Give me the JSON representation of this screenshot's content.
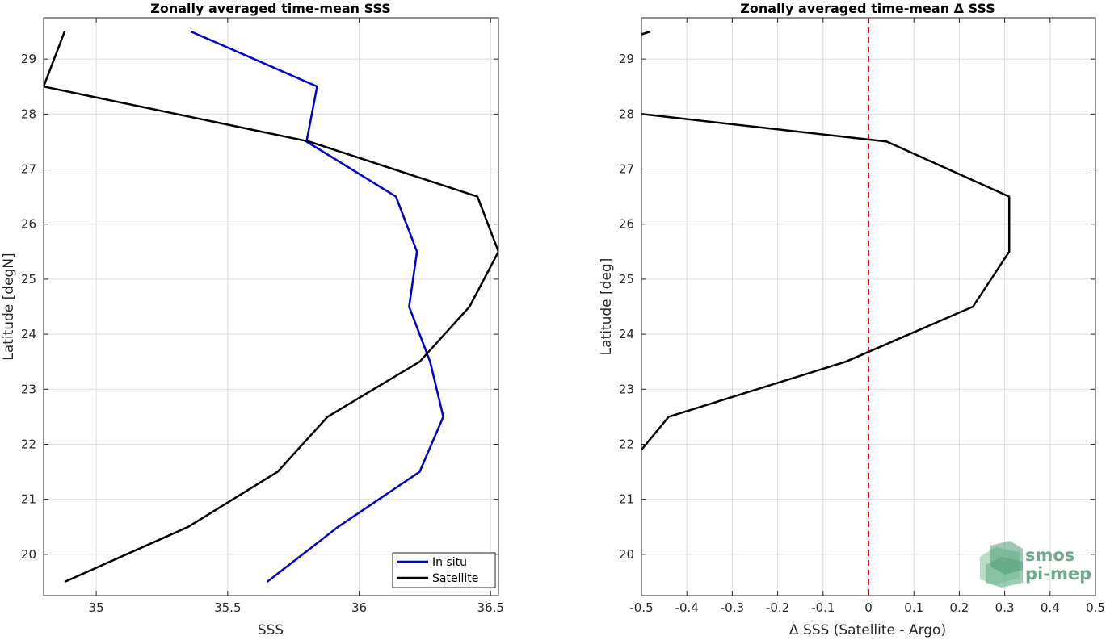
{
  "chart_data": [
    {
      "type": "line",
      "title": "Zonally averaged time-mean SSS",
      "xlabel": "SSS",
      "ylabel": "Latitude [degN]",
      "xlim": [
        34.8,
        36.53
      ],
      "ylim": [
        19.25,
        29.75
      ],
      "xticks": [
        35,
        35.5,
        36,
        36.5
      ],
      "xtick_labels": [
        "35",
        "35.5",
        "36",
        "36.5"
      ],
      "yticks": [
        20,
        21,
        22,
        23,
        24,
        25,
        26,
        27,
        28,
        29
      ],
      "ytick_labels": [
        "20",
        "21",
        "22",
        "23",
        "24",
        "25",
        "26",
        "27",
        "28",
        "29"
      ],
      "grid": true,
      "legend_position": "bottom-right",
      "series": [
        {
          "name": "In situ",
          "color": "#0000cd",
          "points": [
            [
              35.36,
              29.5
            ],
            [
              35.84,
              28.5
            ],
            [
              35.8,
              27.5
            ],
            [
              36.14,
              26.5
            ],
            [
              36.22,
              25.5
            ],
            [
              36.19,
              24.5
            ],
            [
              36.27,
              23.5
            ],
            [
              36.32,
              22.5
            ],
            [
              36.23,
              21.5
            ],
            [
              35.92,
              20.5
            ],
            [
              35.65,
              19.5
            ]
          ]
        },
        {
          "name": "Satellite",
          "color": "#000000",
          "points": [
            [
              34.88,
              29.5
            ],
            [
              34.8,
              28.5
            ],
            [
              35.81,
              27.5
            ],
            [
              36.45,
              26.5
            ],
            [
              36.53,
              25.5
            ],
            [
              36.42,
              24.5
            ],
            [
              36.23,
              23.5
            ],
            [
              35.88,
              22.5
            ],
            [
              35.69,
              21.5
            ],
            [
              35.35,
              20.5
            ],
            [
              34.88,
              19.5
            ]
          ]
        }
      ]
    },
    {
      "type": "line",
      "title": "Zonally averaged time-mean Δ SSS",
      "xlabel": "Δ SSS (Satellite - Argo)",
      "ylabel": "Latitude [deg]",
      "xlim": [
        -0.5,
        0.5
      ],
      "ylim": [
        19.25,
        29.75
      ],
      "xticks": [
        -0.5,
        -0.4,
        -0.3,
        -0.2,
        -0.1,
        0,
        0.1,
        0.2,
        0.3,
        0.4,
        0.5
      ],
      "xtick_labels": [
        "-0.5",
        "-0.4",
        "-0.3",
        "-0.2",
        "-0.1",
        "0",
        "0.1",
        "0.2",
        "0.3",
        "0.4",
        "0.5"
      ],
      "yticks": [
        20,
        21,
        22,
        23,
        24,
        25,
        26,
        27,
        28,
        29
      ],
      "ytick_labels": [
        "20",
        "21",
        "22",
        "23",
        "24",
        "25",
        "26",
        "27",
        "28",
        "29"
      ],
      "grid": true,
      "zero_line": {
        "x": 0,
        "color": "#ff0000",
        "style": "dashed"
      },
      "series": [
        {
          "color": "#000000",
          "segments": [
            [
              [
                -0.5,
                29.45
              ],
              [
                -0.48,
                29.5
              ]
            ],
            [
              [
                -0.5,
                28.0
              ],
              [
                0.04,
                27.5
              ],
              [
                0.31,
                26.5
              ],
              [
                0.31,
                25.5
              ],
              [
                0.23,
                24.5
              ],
              [
                -0.05,
                23.5
              ],
              [
                -0.44,
                22.5
              ],
              [
                -0.5,
                21.9
              ]
            ]
          ]
        }
      ]
    }
  ],
  "logo": {
    "line1": "smos",
    "line2": "pi-mep",
    "color": "#6fa88c"
  }
}
